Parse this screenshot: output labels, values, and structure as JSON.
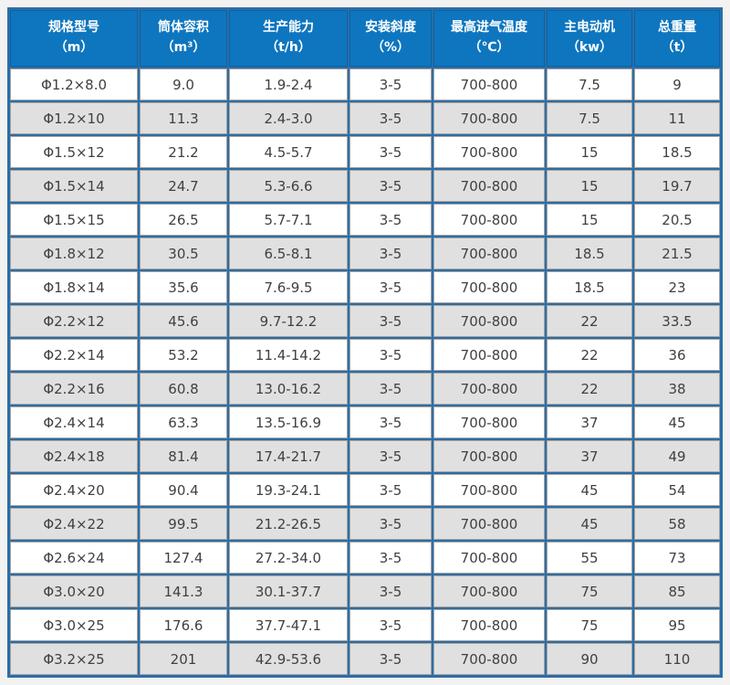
{
  "colors": {
    "header_bg": "#0e76bf",
    "header_border": "#0b62a3",
    "grid_blue": "#2d6da5",
    "row_alt_bg": "#e0e0e0"
  },
  "table": {
    "columns": [
      {
        "label": "规格型号",
        "unit": "（m）"
      },
      {
        "label": "筒体容积",
        "unit": "（m³）"
      },
      {
        "label": "生产能力",
        "unit": "（t/h）"
      },
      {
        "label": "安装斜度",
        "unit": "（%）"
      },
      {
        "label": "最高进气温度",
        "unit": "（℃）"
      },
      {
        "label": "主电动机",
        "unit": "（kw）"
      },
      {
        "label": "总重量",
        "unit": "（t）"
      }
    ],
    "rows": [
      [
        "Φ1.2×8.0",
        "9.0",
        "1.9-2.4",
        "3-5",
        "700-800",
        "7.5",
        "9"
      ],
      [
        "Φ1.2×10",
        "11.3",
        "2.4-3.0",
        "3-5",
        "700-800",
        "7.5",
        "11"
      ],
      [
        "Φ1.5×12",
        "21.2",
        "4.5-5.7",
        "3-5",
        "700-800",
        "15",
        "18.5"
      ],
      [
        "Φ1.5×14",
        "24.7",
        "5.3-6.6",
        "3-5",
        "700-800",
        "15",
        "19.7"
      ],
      [
        "Φ1.5×15",
        "26.5",
        "5.7-7.1",
        "3-5",
        "700-800",
        "15",
        "20.5"
      ],
      [
        "Φ1.8×12",
        "30.5",
        "6.5-8.1",
        "3-5",
        "700-800",
        "18.5",
        "21.5"
      ],
      [
        "Φ1.8×14",
        "35.6",
        "7.6-9.5",
        "3-5",
        "700-800",
        "18.5",
        "23"
      ],
      [
        "Φ2.2×12",
        "45.6",
        "9.7-12.2",
        "3-5",
        "700-800",
        "22",
        "33.5"
      ],
      [
        "Φ2.2×14",
        "53.2",
        "11.4-14.2",
        "3-5",
        "700-800",
        "22",
        "36"
      ],
      [
        "Φ2.2×16",
        "60.8",
        "13.0-16.2",
        "3-5",
        "700-800",
        "22",
        "38"
      ],
      [
        "Φ2.4×14",
        "63.3",
        "13.5-16.9",
        "3-5",
        "700-800",
        "37",
        "45"
      ],
      [
        "Φ2.4×18",
        "81.4",
        "17.4-21.7",
        "3-5",
        "700-800",
        "37",
        "49"
      ],
      [
        "Φ2.4×20",
        "90.4",
        "19.3-24.1",
        "3-5",
        "700-800",
        "45",
        "54"
      ],
      [
        "Φ2.4×22",
        "99.5",
        "21.2-26.5",
        "3-5",
        "700-800",
        "45",
        "58"
      ],
      [
        "Φ2.6×24",
        "127.4",
        "27.2-34.0",
        "3-5",
        "700-800",
        "55",
        "73"
      ],
      [
        "Φ3.0×20",
        "141.3",
        "30.1-37.7",
        "3-5",
        "700-800",
        "75",
        "85"
      ],
      [
        "Φ3.0×25",
        "176.6",
        "37.7-47.1",
        "3-5",
        "700-800",
        "75",
        "95"
      ],
      [
        "Φ3.2×25",
        "201",
        "42.9-53.6",
        "3-5",
        "700-800",
        "90",
        "110"
      ]
    ]
  },
  "chart_data": {
    "type": "table",
    "columns": [
      "规格型号（m）",
      "筒体容积（m³）",
      "生产能力（t/h）",
      "安装斜度（%）",
      "最高进气温度（℃）",
      "主电动机（kw）",
      "总重量（t）"
    ],
    "rows": [
      [
        "Φ1.2×8.0",
        "9.0",
        "1.9-2.4",
        "3-5",
        "700-800",
        "7.5",
        "9"
      ],
      [
        "Φ1.2×10",
        "11.3",
        "2.4-3.0",
        "3-5",
        "700-800",
        "7.5",
        "11"
      ],
      [
        "Φ1.5×12",
        "21.2",
        "4.5-5.7",
        "3-5",
        "700-800",
        "15",
        "18.5"
      ],
      [
        "Φ1.5×14",
        "24.7",
        "5.3-6.6",
        "3-5",
        "700-800",
        "15",
        "19.7"
      ],
      [
        "Φ1.5×15",
        "26.5",
        "5.7-7.1",
        "3-5",
        "700-800",
        "15",
        "20.5"
      ],
      [
        "Φ1.8×12",
        "30.5",
        "6.5-8.1",
        "3-5",
        "700-800",
        "18.5",
        "21.5"
      ],
      [
        "Φ1.8×14",
        "35.6",
        "7.6-9.5",
        "3-5",
        "700-800",
        "18.5",
        "23"
      ],
      [
        "Φ2.2×12",
        "45.6",
        "9.7-12.2",
        "3-5",
        "700-800",
        "22",
        "33.5"
      ],
      [
        "Φ2.2×14",
        "53.2",
        "11.4-14.2",
        "3-5",
        "700-800",
        "22",
        "36"
      ],
      [
        "Φ2.2×16",
        "60.8",
        "13.0-16.2",
        "3-5",
        "700-800",
        "22",
        "38"
      ],
      [
        "Φ2.4×14",
        "63.3",
        "13.5-16.9",
        "3-5",
        "700-800",
        "37",
        "45"
      ],
      [
        "Φ2.4×18",
        "81.4",
        "17.4-21.7",
        "3-5",
        "700-800",
        "37",
        "49"
      ],
      [
        "Φ2.4×20",
        "90.4",
        "19.3-24.1",
        "3-5",
        "700-800",
        "45",
        "54"
      ],
      [
        "Φ2.4×22",
        "99.5",
        "21.2-26.5",
        "3-5",
        "700-800",
        "45",
        "58"
      ],
      [
        "Φ2.6×24",
        "127.4",
        "27.2-34.0",
        "3-5",
        "700-800",
        "55",
        "73"
      ],
      [
        "Φ3.0×20",
        "141.3",
        "30.1-37.7",
        "3-5",
        "700-800",
        "75",
        "85"
      ],
      [
        "Φ3.0×25",
        "176.6",
        "37.7-47.1",
        "3-5",
        "700-800",
        "75",
        "95"
      ],
      [
        "Φ3.2×25",
        "201",
        "42.9-53.6",
        "3-5",
        "700-800",
        "90",
        "110"
      ]
    ]
  }
}
